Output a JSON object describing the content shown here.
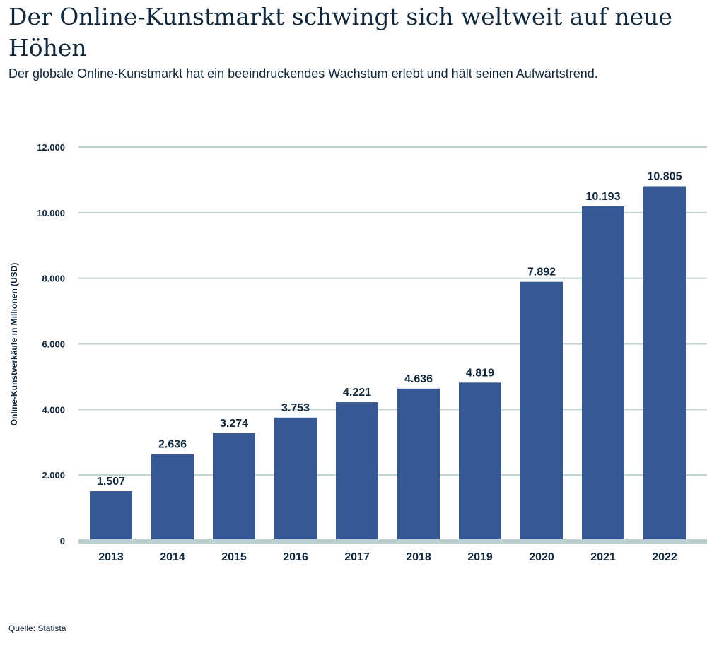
{
  "chart_data": {
    "type": "bar",
    "title": "Der Online-Kunstmarkt schwingt sich weltweit auf neue Höhen",
    "subtitle": "Der globale Online-Kunstmarkt hat ein beeindruckendes Wachstum erlebt und hält seinen Aufwärtstrend.",
    "xlabel": "",
    "ylabel": "Online-Kunstverkäufe in Millionen (USD)",
    "categories": [
      "2013",
      "2014",
      "2015",
      "2016",
      "2017",
      "2018",
      "2019",
      "2020",
      "2021",
      "2022"
    ],
    "values": [
      1507,
      2636,
      3274,
      3753,
      4221,
      4636,
      4819,
      7892,
      10193,
      10805
    ],
    "data_labels": [
      "1.507",
      "2.636",
      "3.274",
      "3.753",
      "4.221",
      "4.636",
      "4.819",
      "7.892",
      "10.193",
      "10.805"
    ],
    "ylim": [
      0,
      12000
    ],
    "yticks": [
      0,
      2000,
      4000,
      6000,
      8000,
      10000,
      12000
    ],
    "ytick_labels": [
      "0",
      "2.000",
      "4.000",
      "6.000",
      "8.000",
      "10.000",
      "12.000"
    ],
    "grid": true,
    "legend": "none",
    "source": "Quelle: Statista",
    "colors": {
      "bar": "#375893",
      "grid": "#bcd2d0",
      "text": "#10263a"
    }
  }
}
